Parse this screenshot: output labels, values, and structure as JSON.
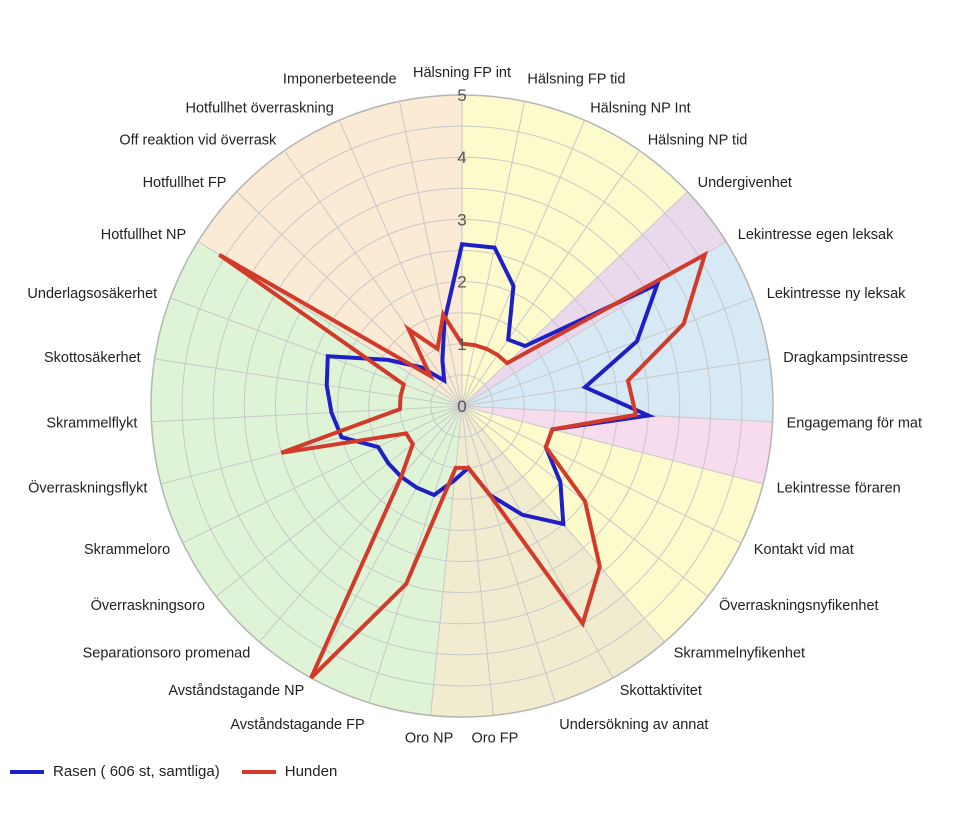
{
  "chart_data": {
    "type": "radar",
    "title": "",
    "rlim": [
      0,
      5
    ],
    "radial_ticks": [
      "0",
      "1",
      "2",
      "3",
      "4",
      "5"
    ],
    "grid": true,
    "legend_position": "bottom-left",
    "categories": [
      "Hälsning FP int",
      "Hälsning FP tid",
      "Hälsning NP Int",
      "Hälsning NP tid",
      "Undergivenhet",
      "Lekintresse egen leksak",
      "Lekintresse ny leksak",
      "Dragkampsintresse",
      "Engagemang för mat",
      "Lekintresse föraren",
      "Kontakt vid mat",
      "Överraskningsnyfikenhet",
      "Skrammelnyfikenhet",
      "Skottaktivitet",
      "Undersökning av annat",
      "Oro FP",
      "Oro NP",
      "Avståndstagande FP",
      "Avståndstagande NP",
      "Separationsoro promenad",
      "Överraskningsoro",
      "Skrammeloro",
      "Överraskningsflykt",
      "Skrammelflykt",
      "Skottosäkerhet",
      "Underlagsosäkerhet",
      "Hotfullhet NP",
      "Hotfullhet FP",
      "Off reaktion vid överrask",
      "Hotfullhet överraskning",
      "Imponerbeteende"
    ],
    "series": [
      {
        "name": "Rasen ( 606 st, samtliga)",
        "color": "#1f1fc8",
        "values": [
          2.6,
          2.6,
          2.1,
          1.3,
          1.4,
          3.7,
          3.0,
          2.0,
          3.0,
          1.5,
          1.5,
          2.0,
          2.5,
          2.0,
          1.5,
          1.0,
          1.2,
          1.5,
          1.5,
          1.5,
          1.5,
          1.5,
          2.0,
          2.1,
          2.2,
          2.3,
          1.4,
          0.9,
          0.5,
          0.8,
          1.4
        ]
      },
      {
        "name": "Hunden",
        "color": "#d23a2a",
        "values": [
          1.0,
          1.0,
          1.0,
          1.0,
          1.0,
          4.6,
          3.8,
          2.7,
          2.8,
          1.5,
          1.5,
          2.5,
          3.4,
          4.0,
          1.5,
          1.0,
          1.0,
          3.0,
          5.0,
          1.5,
          1.0,
          1.0,
          3.0,
          1.0,
          1.0,
          1.0,
          4.6,
          0.7,
          1.5,
          1.0,
          1.5
        ]
      }
    ],
    "sectors": [
      {
        "from": 0,
        "to": 4,
        "color": "#fdfbcc"
      },
      {
        "from": 4,
        "to": 5,
        "color": "#ead8ec"
      },
      {
        "from": 5,
        "to": 8,
        "color": "#d6e9f5"
      },
      {
        "from": 8,
        "to": 9,
        "color": "#f6dcec"
      },
      {
        "from": 9,
        "to": 12,
        "color": "#fdfbcc"
      },
      {
        "from": 12,
        "to": 16,
        "color": "#f1ebd0"
      },
      {
        "from": 16,
        "to": 26,
        "color": "#dff3d7"
      },
      {
        "from": 26,
        "to": 31,
        "color": "#fbead4"
      }
    ]
  }
}
